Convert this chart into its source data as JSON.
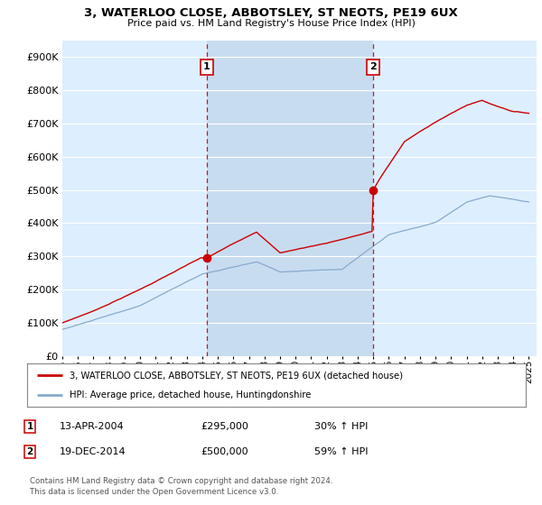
{
  "title": "3, WATERLOO CLOSE, ABBOTSLEY, ST NEOTS, PE19 6UX",
  "subtitle": "Price paid vs. HM Land Registry's House Price Index (HPI)",
  "bg_color": "#ffffff",
  "plot_bg_color": "#ddeeff",
  "highlight_color": "#c8dcf0",
  "grid_color": "#ffffff",
  "red_line_color": "#cc0000",
  "blue_line_color": "#88aacc",
  "dashed_line_color": "#cc0000",
  "ylabel_ticks": [
    "£0",
    "£100K",
    "£200K",
    "£300K",
    "£400K",
    "£500K",
    "£600K",
    "£700K",
    "£800K",
    "£900K"
  ],
  "ytick_values": [
    0,
    100000,
    200000,
    300000,
    400000,
    500000,
    600000,
    700000,
    800000,
    900000
  ],
  "ylim": [
    0,
    950000
  ],
  "xlim_start": 1995.0,
  "xlim_end": 2025.5,
  "sale1_x": 2004.28,
  "sale1_y": 295000,
  "sale1_label": "1",
  "sale1_date": "13-APR-2004",
  "sale1_price": "£295,000",
  "sale1_hpi": "30% ↑ HPI",
  "sale2_x": 2014.97,
  "sale2_y": 500000,
  "sale2_label": "2",
  "sale2_date": "19-DEC-2014",
  "sale2_price": "£500,000",
  "sale2_hpi": "59% ↑ HPI",
  "legend_line1": "3, WATERLOO CLOSE, ABBOTSLEY, ST NEOTS, PE19 6UX (detached house)",
  "legend_line2": "HPI: Average price, detached house, Huntingdonshire",
  "footer": "Contains HM Land Registry data © Crown copyright and database right 2024.\nThis data is licensed under the Open Government Licence v3.0.",
  "xtick_years": [
    1995,
    1996,
    1997,
    1998,
    1999,
    2000,
    2001,
    2002,
    2003,
    2004,
    2005,
    2006,
    2007,
    2008,
    2009,
    2010,
    2011,
    2012,
    2013,
    2014,
    2015,
    2016,
    2017,
    2018,
    2019,
    2020,
    2021,
    2022,
    2023,
    2024,
    2025
  ]
}
